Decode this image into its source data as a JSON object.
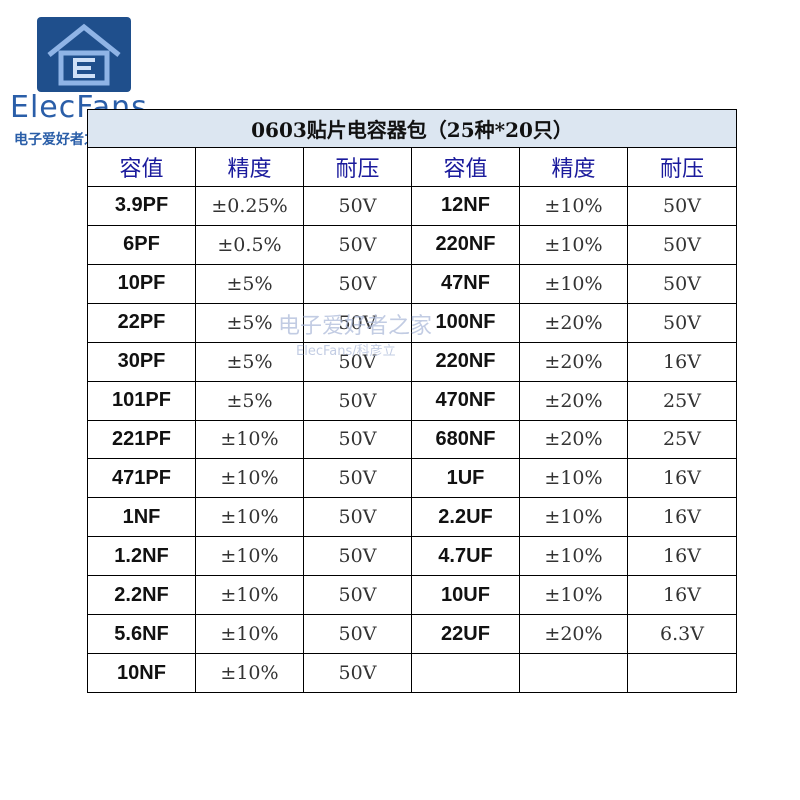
{
  "logo": {
    "icon": "house-e-logo-icon",
    "brand": "ElecFans",
    "brand_sub": "电子爱好者之家",
    "color": "#1f4f8c"
  },
  "watermark": {
    "line1": "电子爱好者之家",
    "line2": "ElecFans/科彦立"
  },
  "table": {
    "title": "0603贴片电容器包（25种*20只）",
    "headers": [
      "容值",
      "精度",
      "耐压",
      "容值",
      "精度",
      "耐压"
    ],
    "rows": [
      [
        "3.9PF",
        "±0.25%",
        "50V",
        "12NF",
        "±10%",
        "50V"
      ],
      [
        "6PF",
        "±0.5%",
        "50V",
        "220NF",
        "±10%",
        "50V"
      ],
      [
        "10PF",
        "±5%",
        "50V",
        "47NF",
        "±10%",
        "50V"
      ],
      [
        "22PF",
        "±5%",
        "50V",
        "100NF",
        "±20%",
        "50V"
      ],
      [
        "30PF",
        "±5%",
        "50V",
        "220NF",
        "±20%",
        "16V"
      ],
      [
        "101PF",
        "±5%",
        "50V",
        "470NF",
        "±20%",
        "25V"
      ],
      [
        "221PF",
        "±10%",
        "50V",
        "680NF",
        "±20%",
        "25V"
      ],
      [
        "471PF",
        "±10%",
        "50V",
        "1UF",
        "±10%",
        "16V"
      ],
      [
        "1NF",
        "±10%",
        "50V",
        "2.2UF",
        "±10%",
        "16V"
      ],
      [
        "1.2NF",
        "±10%",
        "50V",
        "4.7UF",
        "±10%",
        "16V"
      ],
      [
        "2.2NF",
        "±10%",
        "50V",
        "10UF",
        "±10%",
        "16V"
      ],
      [
        "5.6NF",
        "±10%",
        "50V",
        "22UF",
        "±20%",
        "6.3V"
      ],
      [
        "10NF",
        "±10%",
        "50V",
        "",
        "",
        ""
      ]
    ]
  },
  "colors": {
    "title_bg": "#dce6f1",
    "header_text": "#1a1a9c",
    "brand": "#2a5ea8"
  }
}
